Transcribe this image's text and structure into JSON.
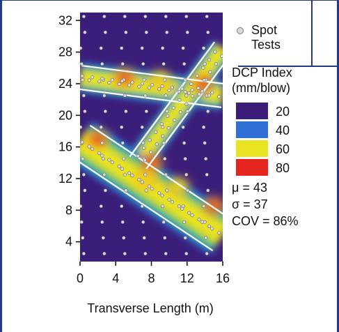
{
  "chart_data": {
    "type": "heatmap",
    "xlabel": "Transverse Length (m)",
    "ylabel": "",
    "xlim": [
      0,
      16
    ],
    "ylim": [
      1.5,
      33
    ],
    "x_ticks": [
      "0",
      "4",
      "8",
      "12",
      "16"
    ],
    "y_ticks": [
      "4",
      "8",
      "12",
      "16",
      "20",
      "24",
      "28",
      "32"
    ],
    "legend": {
      "spot_label_line1": "Spot",
      "spot_label_line2": "Tests",
      "index_title_line1": "DCP Index",
      "index_title_line2": "(mm/blow)",
      "entries": [
        {
          "label": "20",
          "color": "#3b1e7a"
        },
        {
          "label": "40",
          "color": "#2f6fd6"
        },
        {
          "label": "60",
          "color": "#e8e323"
        },
        {
          "label": "80",
          "color": "#e5261f"
        }
      ]
    },
    "stats": {
      "mu": "μ = 43",
      "sigma": "σ = 37",
      "cov": "COV = 86%"
    },
    "bands": [
      {
        "name": "upper",
        "from": [
          0,
          24.8
        ],
        "to": [
          16,
          22.5
        ],
        "half_width": 1.5
      },
      {
        "name": "diagonal",
        "from": [
          6.5,
          14
        ],
        "to": [
          16,
          28.5
        ],
        "half_width": 1.3
      },
      {
        "name": "lower",
        "from": [
          0,
          16.8
        ],
        "to": [
          16,
          4.8
        ],
        "half_width": 2.3
      }
    ],
    "hot_spots": [
      {
        "x": 2.0,
        "y": 17.0,
        "value": 82
      },
      {
        "x": 13.8,
        "y": 24.0,
        "value": 84
      },
      {
        "x": 5.0,
        "y": 24.8,
        "value": 72
      },
      {
        "x": 9.0,
        "y": 24.5,
        "value": 66
      },
      {
        "x": 8.0,
        "y": 14.0,
        "value": 74
      },
      {
        "x": 11.0,
        "y": 11.0,
        "value": 68
      },
      {
        "x": 15.0,
        "y": 8.5,
        "value": 72
      },
      {
        "x": 7.5,
        "y": 12.0,
        "value": 64
      }
    ]
  },
  "colors": {
    "frame": "#1f3a86",
    "background_low": "#3b1e7a",
    "boundary": "#ffffff",
    "spot_fill": "#d9d9d9"
  }
}
